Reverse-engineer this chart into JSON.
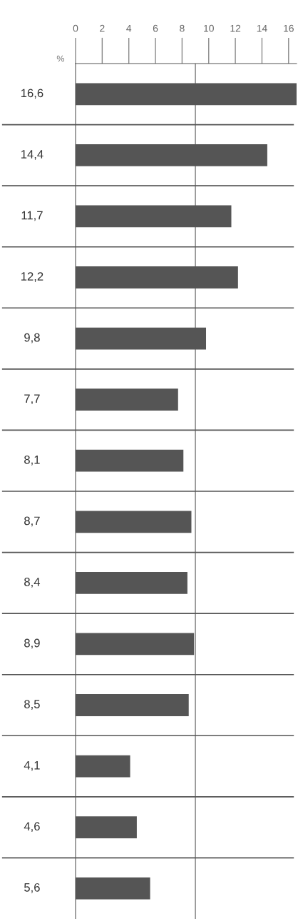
{
  "chart_data": {
    "type": "bar",
    "orientation": "horizontal",
    "xlabel": "%",
    "categories": [
      null,
      null,
      null,
      null,
      null,
      null,
      null,
      null,
      null,
      null,
      null,
      null,
      null,
      null
    ],
    "values": [
      16.6,
      14.4,
      11.7,
      12.2,
      9.8,
      7.7,
      8.1,
      8.7,
      8.4,
      8.9,
      8.5,
      4.1,
      4.6,
      5.6
    ],
    "value_labels": [
      "16,6",
      "14,4",
      "11,7",
      "12,2",
      "9,8",
      "7,7",
      "8,1",
      "8,7",
      "8,4",
      "8,9",
      "8,5",
      "4,1",
      "4,6",
      "5,6"
    ],
    "color": "#555555",
    "xlim": [
      0,
      16.6
    ],
    "xticks": [
      0,
      2,
      4,
      6,
      8,
      10,
      12,
      14,
      16
    ],
    "ref_lines": [
      {
        "axis": "x",
        "value": 9,
        "color": "#777777"
      }
    ],
    "grid": "y"
  }
}
